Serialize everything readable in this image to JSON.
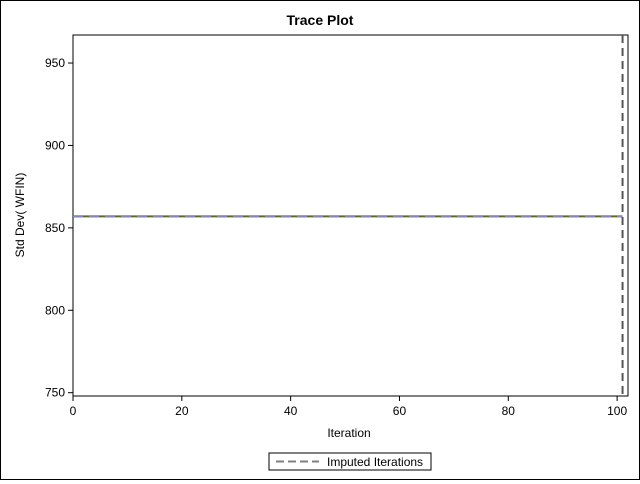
{
  "chart_data": {
    "type": "line",
    "title": "Trace Plot",
    "xlabel": "Iteration",
    "ylabel": "Std Dev( WFIN)",
    "xlim": [
      0,
      102
    ],
    "ylim": [
      748,
      967
    ],
    "x_ticks": [
      "0",
      "20",
      "40",
      "60",
      "80",
      "100"
    ],
    "y_ticks": [
      "750",
      "800",
      "850",
      "900",
      "950"
    ],
    "series": [
      {
        "x": [
          0,
          101
        ],
        "values": [
          857,
          857
        ],
        "color": "#5a6e1a"
      }
    ],
    "reference_line": {
      "name": "Imputed Iterations",
      "x": 101,
      "style": "dashed",
      "color": "#555555"
    },
    "grid": false,
    "legend_position": "bottom-center"
  }
}
